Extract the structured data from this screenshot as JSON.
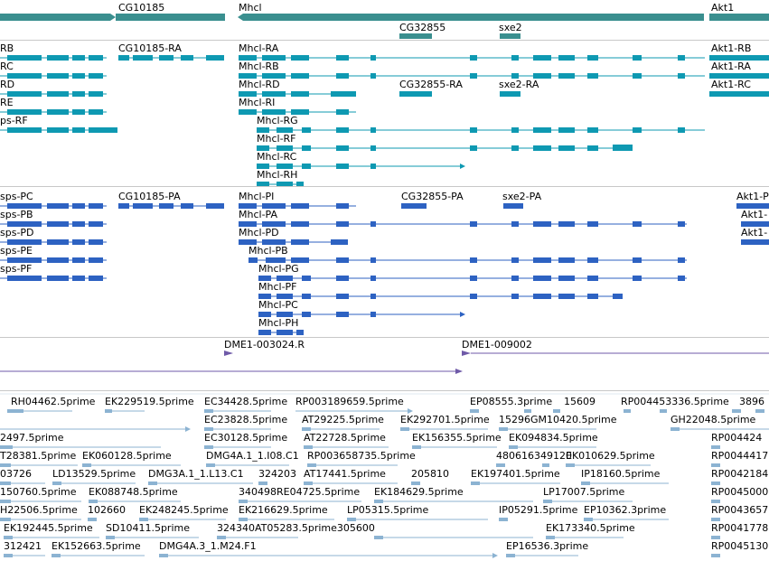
{
  "colors": {
    "gene": "#3a8f8f",
    "mrna": "#0e99b2",
    "cds": "#2d62c2",
    "match": "#6f5aa8",
    "est": "#8cb3d2",
    "divider": "#c8c8c8"
  },
  "tracks": {
    "genes": {
      "items": [
        {
          "label": "CG10185"
        },
        {
          "label": "Mhcl"
        },
        {
          "label": "Akt1"
        },
        {
          "label": "CG32855"
        },
        {
          "label": "sxe2"
        }
      ]
    },
    "transcripts": {
      "items": [
        {
          "label": "RB"
        },
        {
          "label": "CG10185-RA"
        },
        {
          "label": "Mhcl-RA"
        },
        {
          "label": "Akt1-RB"
        },
        {
          "label": "RC"
        },
        {
          "label": "Mhcl-RB"
        },
        {
          "label": "Akt1-RA"
        },
        {
          "label": "RD"
        },
        {
          "label": "Mhcl-RD"
        },
        {
          "label": "CG32855-RA"
        },
        {
          "label": "sxe2-RA"
        },
        {
          "label": "Akt1-RC"
        },
        {
          "label": "RE"
        },
        {
          "label": "Mhcl-RI"
        },
        {
          "label": "ps-RF"
        },
        {
          "label": "Mhcl-RG"
        },
        {
          "label": "Mhcl-RF"
        },
        {
          "label": "Mhcl-RC"
        },
        {
          "label": "Mhcl-RH"
        }
      ]
    },
    "proteins": {
      "items": [
        {
          "label": "sps-PC"
        },
        {
          "label": "CG10185-PA"
        },
        {
          "label": "Mhcl-PI"
        },
        {
          "label": "CG32855-PA"
        },
        {
          "label": "sxe2-PA"
        },
        {
          "label": "Akt1-P"
        },
        {
          "label": "sps-PB"
        },
        {
          "label": "Mhcl-PA"
        },
        {
          "label": "Akt1-"
        },
        {
          "label": "sps-PD"
        },
        {
          "label": "Mhcl-PD"
        },
        {
          "label": "Akt1-"
        },
        {
          "label": "sps-PE"
        },
        {
          "label": "Mhcl-PB"
        },
        {
          "label": "sps-PF"
        },
        {
          "label": "Mhcl-PG"
        },
        {
          "label": "Mhcl-PF"
        },
        {
          "label": "Mhcl-PC"
        },
        {
          "label": "Mhcl-PH"
        }
      ]
    },
    "matches": {
      "items": [
        {
          "label": "DME1-003024.R"
        },
        {
          "label": "DME1-009002"
        }
      ]
    },
    "ests": {
      "items": [
        {
          "label": "RH04462.5prime"
        },
        {
          "label": "EK229519.5prime"
        },
        {
          "label": "EC34428.5prime"
        },
        {
          "label": "RP003189659.5prime"
        },
        {
          "label": "EP08555.3prime"
        },
        {
          "label": "15609"
        },
        {
          "label": "RP004453336.5prime"
        },
        {
          "label": "3896"
        },
        {
          "label": "EC23828.5prime"
        },
        {
          "label": "AT29225.5prime"
        },
        {
          "label": "EK292701.5prime"
        },
        {
          "label": "15296GM10420.5prime"
        },
        {
          "label": "GH22048.5prime"
        },
        {
          "label": "2497.5prime"
        },
        {
          "label": "EC30128.5prime"
        },
        {
          "label": "AT22728.5prime"
        },
        {
          "label": "EK156355.5prime"
        },
        {
          "label": "EK094834.5prime"
        },
        {
          "label": "RP004424"
        },
        {
          "label": "T28381.5prime"
        },
        {
          "label": "EK060128.5prime"
        },
        {
          "label": "DMG4A.1_1.I08.C1"
        },
        {
          "label": "RP003658735.5prime"
        },
        {
          "label": "480616349120"
        },
        {
          "label": "EK010629.5prime"
        },
        {
          "label": "RP0044417"
        },
        {
          "label": "03726"
        },
        {
          "label": "LD13529.5prime"
        },
        {
          "label": "DMG3A.1_1.L13.C1"
        },
        {
          "label": "324203"
        },
        {
          "label": "AT17441.5prime"
        },
        {
          "label": "205810"
        },
        {
          "label": "EK197401.5prime"
        },
        {
          "label": "IP18160.5prime"
        },
        {
          "label": "RP0042184"
        },
        {
          "label": "150760.5prime"
        },
        {
          "label": "EK088748.5prime"
        },
        {
          "label": "340498RE04725.5prime"
        },
        {
          "label": "EK184629.5prime"
        },
        {
          "label": "LP17007.5prime"
        },
        {
          "label": "RP0045000"
        },
        {
          "label": "H22506.5prime"
        },
        {
          "label": "102660"
        },
        {
          "label": "EK248245.5prime"
        },
        {
          "label": "EK216629.5prime"
        },
        {
          "label": "LP05315.5prime"
        },
        {
          "label": "IP05291.5prime"
        },
        {
          "label": "EP10362.3prime"
        },
        {
          "label": "RP0043657"
        },
        {
          "label": "EK192445.5prime"
        },
        {
          "label": "SD10411.5prime"
        },
        {
          "label": "324340AT05283.5prime305600"
        },
        {
          "label": "EK173340.5prime"
        },
        {
          "label": "RP0041778"
        },
        {
          "label": "312421"
        },
        {
          "label": "EK152663.5prime"
        },
        {
          "label": "DMG4A.3_1.M24.F1"
        },
        {
          "label": "EP16536.3prime"
        },
        {
          "label": "RP0045130"
        }
      ]
    }
  }
}
